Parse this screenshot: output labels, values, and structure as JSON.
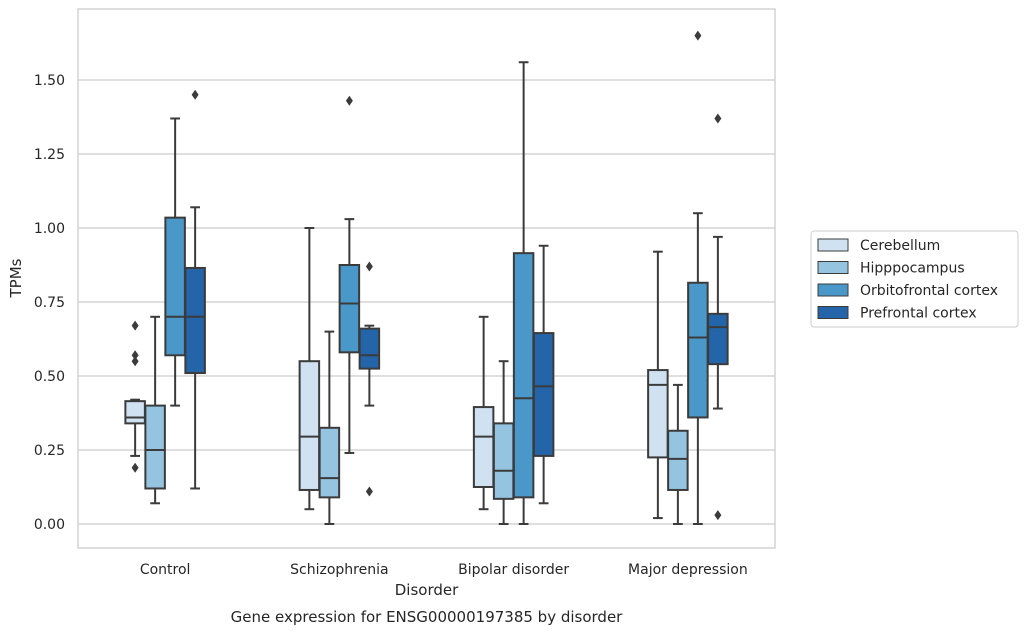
{
  "chart_data": {
    "type": "box",
    "xlabel": "Disorder",
    "ylabel": "TPMs",
    "caption": "Gene expression for ENSG00000197385 by disorder",
    "ylim": [
      -0.08,
      1.74
    ],
    "yticks": [
      "0.00",
      "0.25",
      "0.50",
      "0.75",
      "1.00",
      "1.25",
      "1.50"
    ],
    "grid": true,
    "legend_position": "right, outside plot",
    "categories": [
      "Control",
      "Schizophrenia",
      "Bipolar disorder",
      "Major depression"
    ],
    "series": [
      {
        "name": "Cerebellum",
        "color": "#d0e1f2",
        "boxes": [
          {
            "whislo": 0.23,
            "q1": 0.34,
            "med": 0.36,
            "q3": 0.415,
            "whishi": 0.42,
            "fliers": [
              0.67,
              0.57,
              0.55,
              0.19
            ]
          },
          {
            "whislo": 0.05,
            "q1": 0.115,
            "med": 0.295,
            "q3": 0.55,
            "whishi": 1.0,
            "fliers": []
          },
          {
            "whislo": 0.05,
            "q1": 0.125,
            "med": 0.295,
            "q3": 0.395,
            "whishi": 0.7,
            "fliers": []
          },
          {
            "whislo": 0.02,
            "q1": 0.225,
            "med": 0.47,
            "q3": 0.52,
            "whishi": 0.92,
            "fliers": []
          }
        ]
      },
      {
        "name": "Hipppocampus",
        "color": "#94c4df",
        "boxes": [
          {
            "whislo": 0.07,
            "q1": 0.12,
            "med": 0.25,
            "q3": 0.4,
            "whishi": 0.7,
            "fliers": []
          },
          {
            "whislo": 0.0,
            "q1": 0.09,
            "med": 0.155,
            "q3": 0.325,
            "whishi": 0.65,
            "fliers": []
          },
          {
            "whislo": 0.0,
            "q1": 0.085,
            "med": 0.18,
            "q3": 0.34,
            "whishi": 0.55,
            "fliers": []
          },
          {
            "whislo": 0.0,
            "q1": 0.115,
            "med": 0.22,
            "q3": 0.315,
            "whishi": 0.47,
            "fliers": []
          }
        ]
      },
      {
        "name": "Orbitofrontal cortex",
        "color": "#4a98c9",
        "boxes": [
          {
            "whislo": 0.4,
            "q1": 0.57,
            "med": 0.7,
            "q3": 1.035,
            "whishi": 1.37,
            "fliers": []
          },
          {
            "whislo": 0.24,
            "q1": 0.58,
            "med": 0.745,
            "q3": 0.875,
            "whishi": 1.03,
            "fliers": [
              1.43
            ]
          },
          {
            "whislo": 0.0,
            "q1": 0.09,
            "med": 0.425,
            "q3": 0.915,
            "whishi": 1.56,
            "fliers": []
          },
          {
            "whislo": 0.0,
            "q1": 0.36,
            "med": 0.63,
            "q3": 0.815,
            "whishi": 1.05,
            "fliers": [
              1.65
            ]
          }
        ]
      },
      {
        "name": "Prefrontal cortex",
        "color": "#2464a8",
        "boxes": [
          {
            "whislo": 0.12,
            "q1": 0.51,
            "med": 0.7,
            "q3": 0.865,
            "whishi": 1.07,
            "fliers": [
              1.45
            ]
          },
          {
            "whislo": 0.4,
            "q1": 0.525,
            "med": 0.57,
            "q3": 0.66,
            "whishi": 0.67,
            "fliers": [
              0.87,
              0.11
            ]
          },
          {
            "whislo": 0.07,
            "q1": 0.23,
            "med": 0.465,
            "q3": 0.645,
            "whishi": 0.94,
            "fliers": []
          },
          {
            "whislo": 0.39,
            "q1": 0.54,
            "med": 0.665,
            "q3": 0.71,
            "whishi": 0.97,
            "fliers": [
              1.37,
              0.03
            ]
          }
        ]
      }
    ]
  }
}
